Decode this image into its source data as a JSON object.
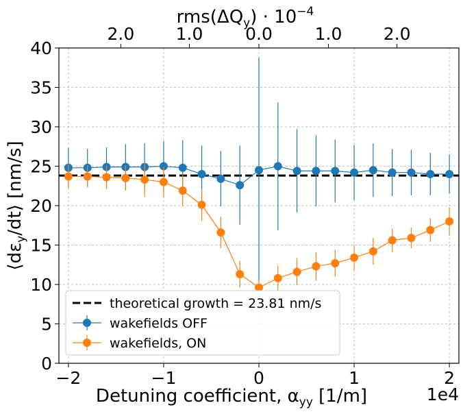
{
  "chart_data": {
    "type": "scatter",
    "xlabel": "Detuning coefficient, α",
    "xlabel_sub": "yy",
    "xlabel_unit": " [1/m]",
    "x_multiplier": "1e4",
    "ylabel": "⟨dε",
    "ylabel_sub": "y",
    "ylabel_unit": "/dt⟩ [nm/s]",
    "top_xlabel_prefix": "rms(ΔQ",
    "top_xlabel_sub": "y",
    "top_xlabel_suffix": ") · 10",
    "top_xlabel_exp": "−4",
    "xlim": [
      -2.1,
      2.1
    ],
    "ylim": [
      0,
      40
    ],
    "x_ticks": [
      -2,
      -1,
      0,
      1,
      2
    ],
    "x_tick_labels": [
      "−2",
      "−1",
      "0",
      "1",
      "2"
    ],
    "y_ticks": [
      0,
      5,
      10,
      15,
      20,
      25,
      30,
      35,
      40
    ],
    "y_tick_labels": [
      "0",
      "5",
      "10",
      "15",
      "20",
      "25",
      "30",
      "35",
      "40"
    ],
    "top_ticks": [
      -1.45,
      -0.73,
      0.0,
      0.73,
      1.45
    ],
    "top_tick_labels": [
      "2.0",
      "1.0",
      "0.0",
      "1.0",
      "2.0"
    ],
    "grid": true,
    "legend_position": "lower-left",
    "hline": {
      "value": 23.81,
      "label": "theoretical growth = 23.81 nm/s",
      "color": "#000000"
    },
    "x": [
      -2.0,
      -1.8,
      -1.6,
      -1.4,
      -1.2,
      -1.0,
      -0.8,
      -0.6,
      -0.4,
      -0.2,
      0.0,
      0.2,
      0.4,
      0.6,
      0.8,
      1.0,
      1.2,
      1.4,
      1.6,
      1.8,
      2.0
    ],
    "series": [
      {
        "name": "wakefields OFF",
        "color": "#1f77b4",
        "values": [
          24.8,
          24.8,
          24.9,
          24.9,
          24.9,
          25.0,
          24.8,
          24.0,
          23.4,
          22.6,
          24.5,
          25.0,
          24.4,
          24.4,
          24.4,
          24.2,
          24.5,
          24.2,
          24.2,
          24.0,
          24.0
        ],
        "errors": [
          2.5,
          2.4,
          2.5,
          2.9,
          3.0,
          3.2,
          3.5,
          3.6,
          3.5,
          5.0,
          14.3,
          8.1,
          5.3,
          4.5,
          4.0,
          3.5,
          3.4,
          3.0,
          2.9,
          2.7,
          2.5
        ]
      },
      {
        "name": "wakefields, ON",
        "color": "#ff7f0e",
        "values": [
          23.7,
          23.7,
          23.6,
          23.5,
          23.3,
          23.0,
          21.9,
          20.1,
          16.6,
          11.3,
          9.6,
          10.8,
          11.6,
          12.3,
          12.7,
          13.4,
          14.2,
          15.6,
          15.9,
          16.9,
          18.0
        ],
        "errors": [
          1.5,
          1.4,
          1.5,
          1.6,
          2.2,
          1.9,
          2.0,
          2.0,
          2.0,
          1.7,
          1.0,
          1.6,
          1.7,
          1.8,
          1.7,
          1.6,
          1.7,
          1.5,
          1.3,
          1.5,
          1.8
        ]
      }
    ]
  }
}
